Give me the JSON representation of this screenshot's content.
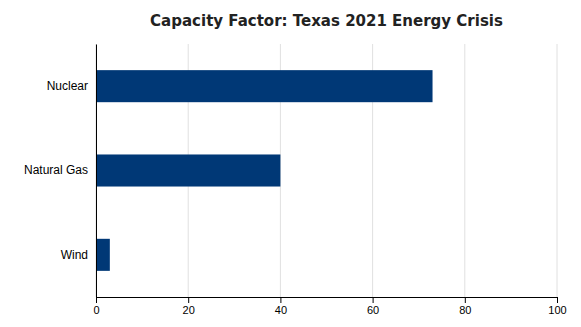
{
  "chart_data": {
    "type": "bar",
    "orientation": "horizontal",
    "title": "Capacity Factor: Texas 2021 Energy Crisis",
    "categories": [
      "Wind",
      "Natural Gas",
      "Nuclear"
    ],
    "values": [
      3,
      40,
      73
    ],
    "color": "#003876",
    "xlim": [
      0,
      100
    ],
    "xticks": [
      0,
      20,
      40,
      60,
      80,
      100
    ],
    "grid": true
  }
}
